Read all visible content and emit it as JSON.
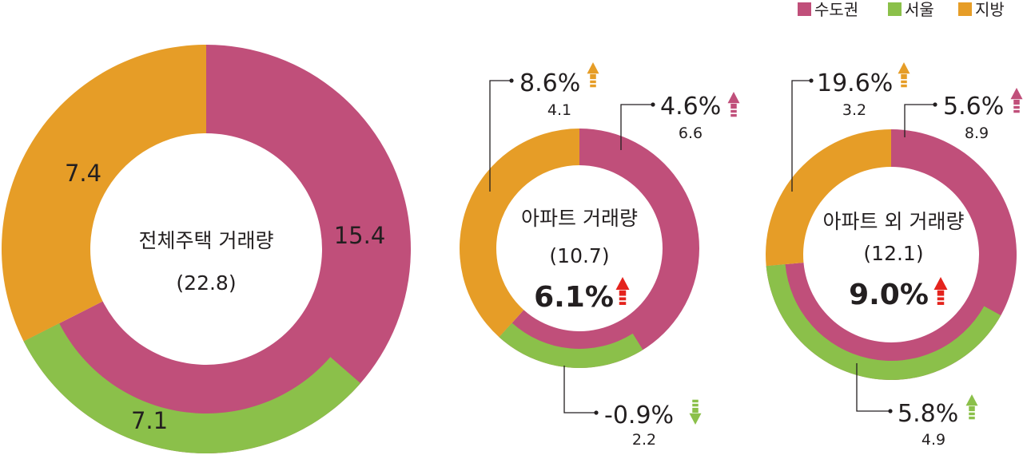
{
  "colors": {
    "metro": "#c04f7a",
    "seoul": "#8bc04a",
    "regional": "#e69d27",
    "up_total": "#e4231d",
    "text": "#231f20",
    "leader": "#231f20"
  },
  "legend": [
    {
      "key": "metro",
      "label": "수도권"
    },
    {
      "key": "seoul",
      "label": "서울"
    },
    {
      "key": "regional",
      "label": "지방"
    }
  ],
  "chart_data": [
    {
      "type": "donut",
      "title": "전체주택 거래량",
      "total": "(22.8)",
      "outer": [
        {
          "key": "metro",
          "value": 15.4,
          "label": "15.4"
        },
        {
          "key": "regional",
          "value": 7.4,
          "label": "7.4"
        }
      ],
      "inner": [
        {
          "key": "seoul",
          "value": 7.1,
          "label": "7.1"
        }
      ]
    },
    {
      "type": "donut",
      "title": "아파트 거래량",
      "total": "(10.7)",
      "change": {
        "text": "6.1%",
        "direction": "up"
      },
      "outer": [
        {
          "key": "metro",
          "value": 6.6,
          "pct": "4.6%",
          "label": "6.6",
          "direction": "up"
        },
        {
          "key": "regional",
          "value": 4.1,
          "pct": "8.6%",
          "label": "4.1",
          "direction": "up"
        }
      ],
      "inner": [
        {
          "key": "seoul",
          "value": 2.2,
          "pct": "-0.9%",
          "label": "2.2",
          "direction": "down"
        }
      ]
    },
    {
      "type": "donut",
      "title": "아파트 외 거래량",
      "total": "(12.1)",
      "change": {
        "text": "9.0%",
        "direction": "up"
      },
      "outer": [
        {
          "key": "metro",
          "value": 8.9,
          "pct": "5.6%",
          "label": "8.9",
          "direction": "up"
        },
        {
          "key": "regional",
          "value": 3.2,
          "pct": "19.6%",
          "label": "3.2",
          "direction": "up"
        }
      ],
      "inner": [
        {
          "key": "seoul",
          "value": 4.9,
          "pct": "5.8%",
          "label": "4.9",
          "direction": "up"
        }
      ]
    }
  ]
}
